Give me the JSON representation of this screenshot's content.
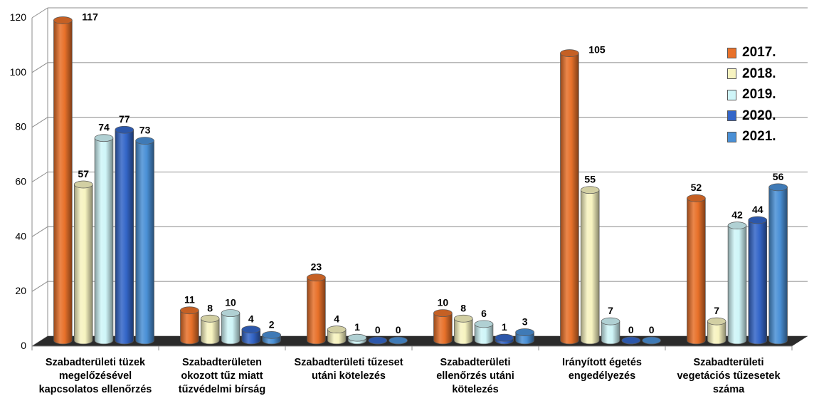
{
  "chart_data": {
    "type": "bar",
    "categories": [
      [
        "Szabadterületi tüzek",
        "megelőzésével",
        "kapcsolatos ellenőrzés"
      ],
      [
        "Szabadterületen",
        "okozott tűz miatt",
        "tűzvédelmi bírság"
      ],
      [
        "Szabadterületi tűzeset",
        "utáni kötelezés"
      ],
      [
        "Szabadterületi",
        "ellenőrzés utáni",
        "kötelezés"
      ],
      [
        "Irányított égetés",
        "engedélyezés"
      ],
      [
        "Szabadterületi",
        "vegetációs tűzesetek",
        "száma"
      ]
    ],
    "series": [
      {
        "name": "2017.",
        "color": "#E8712A",
        "values": [
          117,
          11,
          23,
          10,
          105,
          52
        ]
      },
      {
        "name": "2018.",
        "color": "#F7F3C0",
        "values": [
          57,
          8,
          4,
          8,
          55,
          7
        ]
      },
      {
        "name": "2019.",
        "color": "#CFF5F8",
        "values": [
          74,
          10,
          1,
          6,
          7,
          42
        ]
      },
      {
        "name": "2020.",
        "color": "#3466C8",
        "values": [
          77,
          4,
          0,
          1,
          0,
          44
        ]
      },
      {
        "name": "2021.",
        "color": "#4A90D6",
        "values": [
          73,
          2,
          0,
          3,
          0,
          56
        ]
      }
    ],
    "ylim": [
      0,
      120
    ],
    "yticks": [
      0,
      20,
      40,
      60,
      80,
      100,
      120
    ],
    "grid": true,
    "legend_position": "right",
    "data_labels": true
  }
}
